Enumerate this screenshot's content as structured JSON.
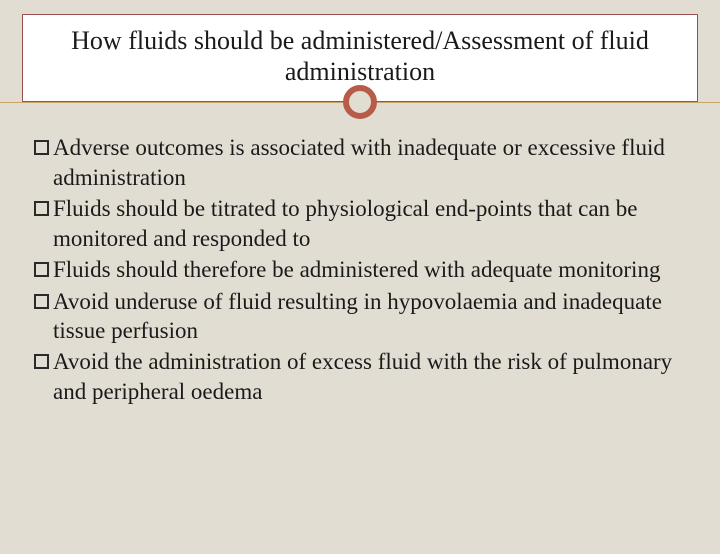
{
  "colors": {
    "background": "#e2ddd2",
    "title_border": "#9a4e4e",
    "title_bg": "#ffffff",
    "divider": "#c9a46a",
    "ring": "#b85c4a",
    "text": "#1a1a1a",
    "bullet_border": "#2a2a2a"
  },
  "typography": {
    "family": "Georgia, 'Times New Roman', serif",
    "title_size": 26,
    "body_size": 23,
    "title_weight": "normal"
  },
  "title": "How fluids should be administered/Assessment of fluid administration",
  "bullets": [
    "Adverse outcomes is associated with inadequate or excessive fluid administration",
    "Fluids should be titrated to physiological end-points that can be monitored and responded to",
    "Fluids should therefore be administered with adequate monitoring",
    "Avoid underuse of fluid resulting in hypovolaemia and inadequate tissue perfusion",
    "Avoid the administration of excess fluid with the risk of pulmonary and peripheral oedema"
  ]
}
